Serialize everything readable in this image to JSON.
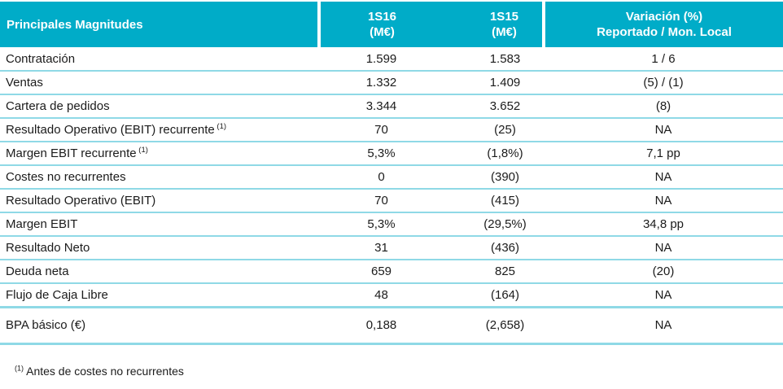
{
  "colors": {
    "header_bg": "#00ACC8",
    "header_text": "#ffffff",
    "row_divider": "#8FD9E6",
    "body_text": "#1b1b1b"
  },
  "table": {
    "header": {
      "col1": "Principales Magnitudes",
      "col2_line1": "1S16",
      "col2_line2": "(M€)",
      "col3_line1": "1S15",
      "col3_line2": "(M€)",
      "col4_line1": "Variación (%)",
      "col4_line2": "Reportado / Mon. Local"
    },
    "rows": [
      {
        "label": "Contratación",
        "sup": "",
        "v1s16": "1.599",
        "v1s15": "1.583",
        "variation": "1 / 6"
      },
      {
        "label": "Ventas",
        "sup": "",
        "v1s16": "1.332",
        "v1s15": "1.409",
        "variation": "(5) / (1)"
      },
      {
        "label": "Cartera de pedidos",
        "sup": "",
        "v1s16": "3.344",
        "v1s15": "3.652",
        "variation": "(8)"
      },
      {
        "label": "Resultado Operativo (EBIT) recurrente",
        "sup": "(1)",
        "v1s16": "70",
        "v1s15": "(25)",
        "variation": "NA"
      },
      {
        "label": "Margen EBIT recurrente",
        "sup": "(1)",
        "v1s16": "5,3%",
        "v1s15": "(1,8%)",
        "variation": "7,1 pp"
      },
      {
        "label": "Costes no recurrentes",
        "sup": "",
        "v1s16": "0",
        "v1s15": "(390)",
        "variation": "NA"
      },
      {
        "label": "Resultado Operativo (EBIT)",
        "sup": "",
        "v1s16": "70",
        "v1s15": "(415)",
        "variation": "NA"
      },
      {
        "label": "Margen EBIT",
        "sup": "",
        "v1s16": "5,3%",
        "v1s15": "(29,5%)",
        "variation": "34,8 pp"
      },
      {
        "label": "Resultado Neto",
        "sup": "",
        "v1s16": "31",
        "v1s15": "(436)",
        "variation": "NA"
      },
      {
        "label": "Deuda neta",
        "sup": "",
        "v1s16": "659",
        "v1s15": "825",
        "variation": "(20)"
      },
      {
        "label": "Flujo de Caja Libre",
        "sup": "",
        "v1s16": "48",
        "v1s15": "(164)",
        "variation": "NA",
        "thick_below": true
      },
      {
        "label": "BPA básico (€)",
        "sup": "",
        "v1s16": "0,188",
        "v1s15": "(2,658)",
        "variation": "NA",
        "tall": true
      }
    ],
    "footnote": {
      "sup": "(1)",
      "text": " Antes de costes no recurrentes"
    }
  }
}
